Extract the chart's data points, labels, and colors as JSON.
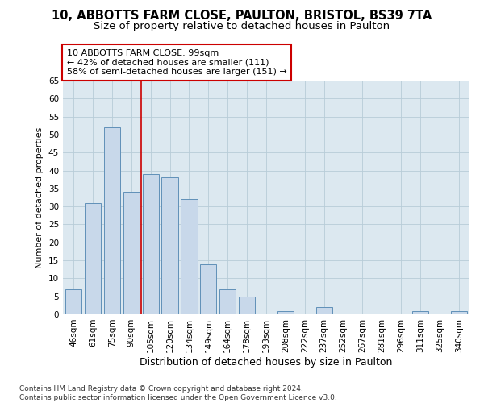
{
  "title1": "10, ABBOTTS FARM CLOSE, PAULTON, BRISTOL, BS39 7TA",
  "title2": "Size of property relative to detached houses in Paulton",
  "xlabel": "Distribution of detached houses by size in Paulton",
  "ylabel": "Number of detached properties",
  "categories": [
    "46sqm",
    "61sqm",
    "75sqm",
    "90sqm",
    "105sqm",
    "120sqm",
    "134sqm",
    "149sqm",
    "164sqm",
    "178sqm",
    "193sqm",
    "208sqm",
    "222sqm",
    "237sqm",
    "252sqm",
    "267sqm",
    "281sqm",
    "296sqm",
    "311sqm",
    "325sqm",
    "340sqm"
  ],
  "values": [
    7,
    31,
    52,
    34,
    39,
    38,
    32,
    14,
    7,
    5,
    0,
    1,
    0,
    2,
    0,
    0,
    0,
    0,
    1,
    0,
    1
  ],
  "bar_color": "#c8d8ea",
  "bar_edge_color": "#6090b8",
  "vline_x": 3.5,
  "vline_color": "#cc0000",
  "annotation_text": "10 ABBOTTS FARM CLOSE: 99sqm\n← 42% of detached houses are smaller (111)\n58% of semi-detached houses are larger (151) →",
  "annotation_box_color": "#ffffff",
  "annotation_box_edge": "#cc0000",
  "ylim": [
    0,
    65
  ],
  "yticks": [
    0,
    5,
    10,
    15,
    20,
    25,
    30,
    35,
    40,
    45,
    50,
    55,
    60,
    65
  ],
  "grid_color": "#b8ccd8",
  "bg_color": "#dce8f0",
  "footer": "Contains HM Land Registry data © Crown copyright and database right 2024.\nContains public sector information licensed under the Open Government Licence v3.0.",
  "title1_fontsize": 10.5,
  "title2_fontsize": 9.5,
  "xlabel_fontsize": 9,
  "ylabel_fontsize": 8,
  "tick_fontsize": 7.5,
  "annot_fontsize": 8,
  "footer_fontsize": 6.5
}
